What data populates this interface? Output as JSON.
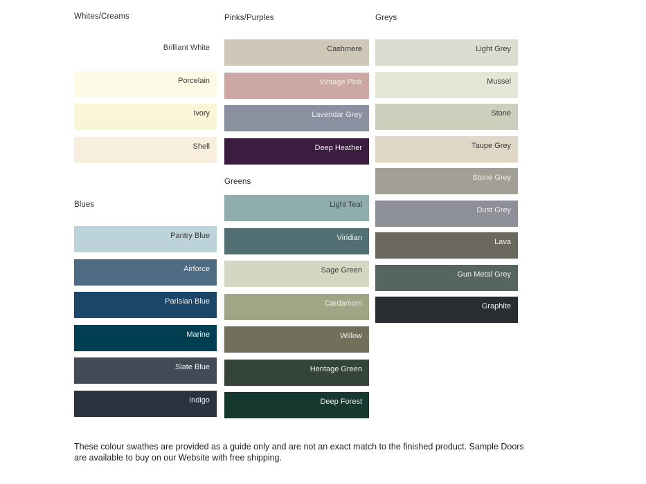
{
  "theme": {
    "background": "#ffffff",
    "dark_label_color": "#3a3a3a",
    "light_label_color": "#f1efec",
    "header_color": "#2d2d2d"
  },
  "columns": [
    {
      "groups": [
        {
          "label": "Whites/Creams",
          "swatches": [
            {
              "name": "Brilliant White",
              "color": "#ffffff",
              "text": "dark"
            },
            {
              "name": "Porcelain",
              "color": "#fdfae6",
              "text": "dark"
            },
            {
              "name": "Ivory",
              "color": "#faf5d7",
              "text": "dark"
            },
            {
              "name": "Shell",
              "color": "#f7eedd",
              "text": "dark"
            }
          ]
        },
        {
          "label": "Blues",
          "swatches": [
            {
              "name": "Pantry Blue",
              "color": "#bdd3da",
              "text": "dark"
            },
            {
              "name": "Airforce",
              "color": "#4e6b84",
              "text": "light"
            },
            {
              "name": "Parisian Blue",
              "color": "#1c4667",
              "text": "light"
            },
            {
              "name": "Marine",
              "color": "#003f52",
              "text": "light"
            },
            {
              "name": "Slate Blue",
              "color": "#414a56",
              "text": "light"
            },
            {
              "name": "Indigo",
              "color": "#2a3240",
              "text": "light"
            }
          ]
        }
      ]
    },
    {
      "groups": [
        {
          "label": "Pinks/Purples",
          "swatches": [
            {
              "name": "Cashmere",
              "color": "#cfc8b8",
              "text": "dark"
            },
            {
              "name": "Vintage Pink",
              "color": "#cba8a3",
              "text": "light"
            },
            {
              "name": "Lavendar Grey",
              "color": "#8b90a1",
              "text": "light"
            },
            {
              "name": "Deep Heather",
              "color": "#3a1d3f",
              "text": "light"
            }
          ]
        },
        {
          "label": "Greens",
          "swatches": [
            {
              "name": "Light Teal",
              "color": "#8fadab",
              "text": "dark"
            },
            {
              "name": "Viridian",
              "color": "#527074",
              "text": "light"
            },
            {
              "name": "Sage Green",
              "color": "#d3d8c2",
              "text": "dark"
            },
            {
              "name": "Cardamom",
              "color": "#9fa585",
              "text": "light"
            },
            {
              "name": "Willow",
              "color": "#70705b",
              "text": "light"
            },
            {
              "name": "Heritage Green",
              "color": "#344439",
              "text": "light"
            },
            {
              "name": "Deep Forest",
              "color": "#16382f",
              "text": "light"
            }
          ]
        }
      ]
    },
    {
      "groups": [
        {
          "label": "Greys",
          "swatches": [
            {
              "name": "Light Grey",
              "color": "#dcdcd0",
              "text": "dark"
            },
            {
              "name": "Mussel",
              "color": "#e3e6d5",
              "text": "dark"
            },
            {
              "name": "Stone",
              "color": "#cbcfbb",
              "text": "dark"
            },
            {
              "name": "Taupe Grey",
              "color": "#dfd8c7",
              "text": "dark"
            },
            {
              "name": "Stone Grey",
              "color": "#a39e96",
              "text": "light"
            },
            {
              "name": "Dust Grey",
              "color": "#8e9099",
              "text": "light"
            },
            {
              "name": "Lava",
              "color": "#6b685e",
              "text": "light"
            },
            {
              "name": "Gun Metal Grey",
              "color": "#566562",
              "text": "light"
            },
            {
              "name": "Graphite",
              "color": "#272d31",
              "text": "light"
            }
          ]
        }
      ]
    }
  ],
  "footer": {
    "text": "These colour swathes are provided as a guide only and are not an exact match to the finished product.  Sample Doors are available to buy on our Website with free shipping."
  }
}
